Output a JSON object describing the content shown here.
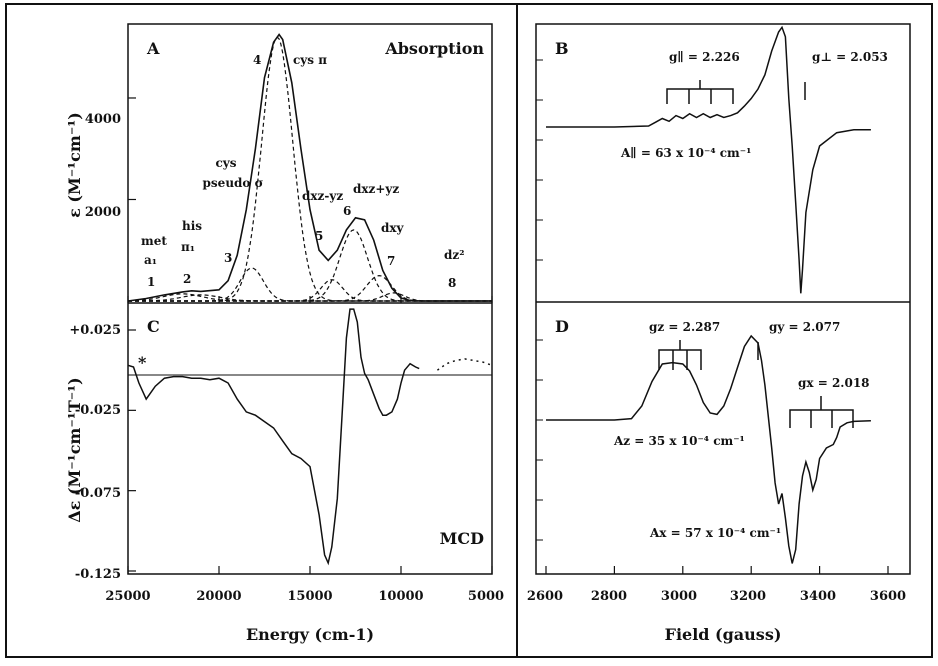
{
  "chart_data": [
    {
      "panel": "A",
      "type": "line",
      "title": "Absorption",
      "xlabel": "Energy (cm-1)",
      "ylabel": "ε (M⁻¹cm⁻¹)",
      "xlim": [
        25000,
        5000
      ],
      "ylim": [
        0,
        5500
      ],
      "xticks": [
        25000,
        20000,
        15000,
        10000,
        5000
      ],
      "xtick_labels": [
        "25000",
        "20000",
        "15000",
        "10000",
        "5000"
      ],
      "yticks": [
        2000,
        4000
      ],
      "ytick_labels": [
        "2000",
        "4000"
      ],
      "series": [
        {
          "style": "solid",
          "x": [
            25000,
            24000,
            23000,
            22000,
            21500,
            21000,
            20000,
            19500,
            19000,
            18500,
            18000,
            17500,
            17000,
            16700,
            16500,
            16000,
            15500,
            15000,
            14500,
            14000,
            13500,
            13000,
            12500,
            12000,
            11500,
            11000,
            10500,
            10000,
            9500,
            9000,
            8000,
            7000,
            6000,
            5000
          ],
          "y": [
            0,
            50,
            120,
            180,
            200,
            190,
            220,
            400,
            900,
            1800,
            3000,
            4400,
            5100,
            5250,
            5150,
            4300,
            3000,
            1800,
            1000,
            800,
            1000,
            1400,
            1640,
            1600,
            1200,
            600,
            250,
            60,
            10,
            0,
            0,
            0,
            0,
            0
          ]
        }
      ],
      "bands": [
        {
          "center": 22000,
          "width": 2500,
          "height": 140
        },
        {
          "center": 21000,
          "width": 2500,
          "height": 120
        },
        {
          "center": 18200,
          "width": 1500,
          "height": 650
        },
        {
          "center": 16800,
          "width": 2000,
          "height": 5200
        },
        {
          "center": 13800,
          "width": 1400,
          "height": 420
        },
        {
          "center": 12600,
          "width": 1800,
          "height": 1400
        },
        {
          "center": 11200,
          "width": 1600,
          "height": 500
        },
        {
          "center": 10400,
          "width": 1400,
          "height": 160
        }
      ],
      "labels": {
        "band_1": "1",
        "band_2": "2",
        "band_3": "3",
        "band_4": "4",
        "band_5": "5",
        "band_6": "6",
        "band_7": "7",
        "band_8": "8",
        "met": "met",
        "a1": "a₁",
        "his": "his",
        "pi1": "π₁",
        "cys": "cys",
        "pseudo": "pseudo σ",
        "cys_pi": "cys π",
        "dxz_yz_minus": "dxz-yz",
        "dxz_yz_plus": "dxz+yz",
        "dxy": "dxy",
        "dz2": "dz²"
      }
    },
    {
      "panel": "C",
      "type": "line",
      "title": "MCD",
      "xlabel": "Energy (cm-1)",
      "ylabel": "Δε (M⁻¹cm⁻¹T⁻¹)",
      "xlim": [
        25000,
        5000
      ],
      "ylim": [
        -0.128,
        0.035
      ],
      "yticks": [
        0.025,
        -0.025,
        -0.075,
        -0.125
      ],
      "ytick_labels": [
        "+0.025",
        "-0.025",
        "-0.075",
        "-0.125"
      ],
      "star": "*",
      "series": [
        {
          "style": "solid",
          "x": [
            25000,
            24700,
            24400,
            24000,
            23500,
            23000,
            22500,
            22000,
            21500,
            21000,
            20500,
            20000,
            19500,
            19000,
            18500,
            18000,
            17500,
            17000,
            16500,
            16000,
            15500,
            15000,
            14500,
            14200,
            14000,
            13800,
            13500,
            13200,
            13000,
            12800,
            12600,
            12400,
            12200,
            12000,
            11800,
            11500,
            11200,
            11000,
            10800,
            10500,
            10200,
            10000,
            9800,
            9500,
            9200,
            9000
          ],
          "y": [
            0.003,
            0.002,
            -0.008,
            -0.018,
            -0.01,
            -0.005,
            -0.004,
            -0.004,
            -0.005,
            -0.005,
            -0.006,
            -0.005,
            -0.008,
            -0.018,
            -0.026,
            -0.028,
            -0.032,
            -0.036,
            -0.044,
            -0.052,
            -0.055,
            -0.06,
            -0.09,
            -0.115,
            -0.12,
            -0.11,
            -0.08,
            -0.02,
            0.02,
            0.038,
            0.038,
            0.03,
            0.008,
            -0.002,
            -0.006,
            -0.015,
            -0.024,
            -0.028,
            -0.028,
            -0.026,
            -0.018,
            -0.008,
            0.0,
            0.004,
            0.002,
            0.001
          ]
        },
        {
          "style": "baseline",
          "x": [
            25000,
            5000
          ],
          "y": [
            -0.003,
            -0.003
          ]
        },
        {
          "style": "dotted",
          "x": [
            8000,
            7500,
            7000,
            6500,
            6000,
            5500,
            5000
          ],
          "y": [
            0.0,
            0.004,
            0.006,
            0.007,
            0.006,
            0.005,
            0.003
          ]
        }
      ]
    },
    {
      "panel": "B",
      "type": "line",
      "xlabel": "Field (gauss)",
      "xlim": [
        2600,
        3600
      ],
      "xticks": [
        2600,
        2800,
        3000,
        3200,
        3400,
        3600
      ],
      "xtick_labels": [
        "2600",
        "2800",
        "3000",
        "3200",
        "3400",
        "3600"
      ],
      "series": [
        {
          "style": "solid",
          "x": [
            2600,
            2700,
            2800,
            2900,
            2920,
            2940,
            2960,
            2980,
            3000,
            3020,
            3040,
            3060,
            3080,
            3100,
            3120,
            3140,
            3160,
            3180,
            3200,
            3220,
            3240,
            3260,
            3280,
            3290,
            3300,
            3310,
            3320,
            3330,
            3340,
            3345,
            3350,
            3360,
            3380,
            3400,
            3450,
            3500,
            3550
          ],
          "y": [
            0.0,
            0.0,
            0.0,
            0.01,
            0.05,
            0.09,
            0.06,
            0.12,
            0.09,
            0.14,
            0.1,
            0.14,
            0.1,
            0.13,
            0.1,
            0.12,
            0.15,
            0.22,
            0.3,
            0.4,
            0.55,
            0.8,
            1.0,
            1.05,
            0.95,
            0.3,
            -0.2,
            -0.8,
            -1.4,
            -1.75,
            -1.5,
            -0.9,
            -0.45,
            -0.2,
            -0.06,
            -0.03,
            -0.03
          ]
        }
      ],
      "labels": {
        "g_par": "g∥ = 2.226",
        "g_perp": "g⊥ = 2.053",
        "A_par": "A∥ = 63 x 10⁻⁴ cm⁻¹"
      }
    },
    {
      "panel": "D",
      "type": "line",
      "xlabel": "Field (gauss)",
      "xlim": [
        2600,
        3600
      ],
      "xticks": [
        2600,
        2800,
        3000,
        3200,
        3400,
        3600
      ],
      "xtick_labels": [
        "2600",
        "2800",
        "3000",
        "3200",
        "3400",
        "3600"
      ],
      "series": [
        {
          "style": "solid",
          "x": [
            2600,
            2700,
            2800,
            2850,
            2880,
            2910,
            2940,
            2970,
            3000,
            3020,
            3040,
            3060,
            3080,
            3100,
            3120,
            3140,
            3160,
            3180,
            3200,
            3220,
            3230,
            3240,
            3250,
            3260,
            3270,
            3280,
            3290,
            3300,
            3310,
            3320,
            3330,
            3340,
            3350,
            3360,
            3370,
            3380,
            3390,
            3400,
            3420,
            3440,
            3450,
            3460,
            3480,
            3500,
            3550
          ],
          "y": [
            0.0,
            0.0,
            0.0,
            0.02,
            0.2,
            0.55,
            0.8,
            0.82,
            0.8,
            0.7,
            0.5,
            0.25,
            0.1,
            0.08,
            0.2,
            0.45,
            0.75,
            1.05,
            1.2,
            1.1,
            0.85,
            0.5,
            0.05,
            -0.4,
            -0.9,
            -1.2,
            -1.05,
            -1.4,
            -1.8,
            -2.05,
            -1.85,
            -1.2,
            -0.8,
            -0.6,
            -0.75,
            -1.0,
            -0.85,
            -0.55,
            -0.4,
            -0.35,
            -0.25,
            -0.1,
            -0.04,
            -0.02,
            -0.01
          ]
        }
      ],
      "labels": {
        "g_z": "gz = 2.287",
        "g_y": "gy = 2.077",
        "g_x": "gx = 2.018",
        "A_z": "Az = 35 x 10⁻⁴ cm⁻¹",
        "A_x": "Ax = 57 x 10⁻⁴ cm⁻¹"
      }
    }
  ],
  "figure": {
    "letter_a": "A",
    "letter_b": "B",
    "letter_c": "C",
    "letter_d": "D",
    "absorption_label": "Absorption",
    "mcd_label": "MCD",
    "energy_axis_title": "Energy (cm-1)",
    "field_axis_title": "Field (gauss)"
  }
}
